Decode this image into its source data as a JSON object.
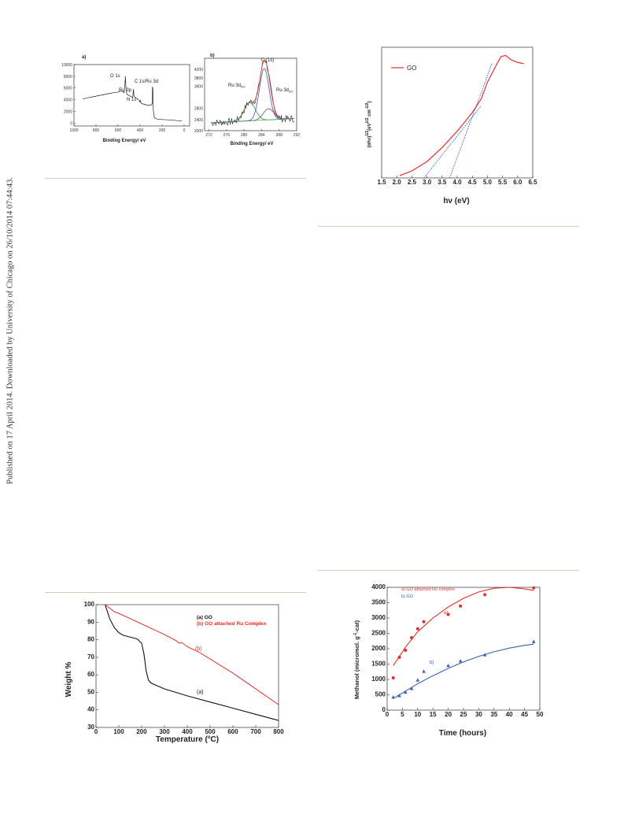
{
  "page": {
    "side_note": "Published on 17 April 2014. Downloaded by University of Chicago on 26/10/2014 07:44:43."
  },
  "chart_data": [
    {
      "id": "xps_survey",
      "type": "line",
      "panel_label": "a)",
      "xlabel": "Binding Energy/ eV",
      "ylabel": "",
      "xlim": [
        1000,
        -50
      ],
      "ylim": [
        -500,
        10000
      ],
      "x_ticks": [
        "1000",
        "800",
        "600",
        "400",
        "200",
        "0"
      ],
      "y_ticks": [
        "10000",
        "8000",
        "6000",
        "4000",
        "2000",
        "0"
      ],
      "series": [
        {
          "x": [
            920,
            880,
            840,
            800,
            760,
            720,
            680,
            640,
            600,
            570,
            545,
            538,
            533,
            528,
            520,
            500,
            480,
            470,
            465,
            460,
            455,
            445,
            430,
            415,
            405,
            400,
            398,
            390,
            380,
            360,
            340,
            320,
            300,
            290,
            287,
            284,
            280,
            270,
            250,
            200,
            150,
            100,
            60,
            20
          ],
          "y": [
            4100,
            4300,
            4450,
            4600,
            4750,
            4900,
            5050,
            5200,
            5300,
            5500,
            5200,
            6500,
            8000,
            6000,
            4900,
            4700,
            4500,
            4400,
            4700,
            5800,
            4600,
            4400,
            4200,
            4000,
            3800,
            3550,
            3900,
            3400,
            3300,
            3200,
            3100,
            3000,
            3100,
            3300,
            6200,
            5900,
            2300,
            900,
            700,
            600,
            550,
            500,
            400,
            350
          ]
        }
      ],
      "annotations": [
        "O 1s",
        "Ru 3p",
        "N 1s",
        "C 1s/Ru 3d"
      ]
    },
    {
      "id": "xps_c1s",
      "type": "line",
      "panel_label": "b)",
      "xlabel": "Binding Energy/ eV",
      "ylabel": "",
      "xlim": [
        292,
        271
      ],
      "ylim": [
        2000,
        4600
      ],
      "x_ticks": [
        "272",
        "276",
        "280",
        "284",
        "288",
        "292"
      ],
      "y_ticks": [
        "4200",
        "3800",
        "3600",
        "2800",
        "2400",
        "2000"
      ],
      "annotations": [
        "C (1s)",
        "Ru 3d5/2",
        "Ru 3d3/2"
      ]
    },
    {
      "id": "tauc",
      "type": "line",
      "xlabel": "hν (eV)",
      "ylabel": "(αhν)1/2(eV1/2 cm-1/2)",
      "xlim": [
        1.5,
        6.5
      ],
      "x_ticks": [
        "1.5",
        "2.0",
        "2.5",
        "3.0",
        "3.5",
        "4.0",
        "4.5",
        "5.0",
        "5.5",
        "6.0",
        "6.5"
      ],
      "series": [
        {
          "name": "GO",
          "x": [
            2.1,
            2.5,
            3.0,
            3.5,
            4.0,
            4.5,
            4.8,
            5.0,
            5.3,
            5.45,
            5.6,
            5.8,
            6.0,
            6.2
          ],
          "y": [
            0.02,
            0.06,
            0.14,
            0.26,
            0.4,
            0.56,
            0.68,
            0.82,
            0.97,
            1.04,
            1.05,
            1.01,
            0.99,
            0.98
          ]
        }
      ],
      "tangents": [
        {
          "from": [
            2.9,
            0.0
          ],
          "to": [
            4.8,
            0.62
          ]
        },
        {
          "from": [
            3.75,
            0.0
          ],
          "to": [
            5.15,
            0.98
          ]
        }
      ]
    },
    {
      "id": "tga",
      "type": "line",
      "xlabel": "Temperature (°C)",
      "ylabel": "Weight %",
      "xlim": [
        0,
        800
      ],
      "ylim": [
        30,
        100
      ],
      "x_ticks": [
        "0",
        "100",
        "200",
        "300",
        "400",
        "500",
        "600",
        "700",
        "800"
      ],
      "y_ticks": [
        "100",
        "90",
        "80",
        "70",
        "60",
        "50",
        "40",
        "30"
      ],
      "legend": [
        "(a) GO",
        "(b) GO attached Ru Complex"
      ],
      "series": [
        {
          "name": "(a)",
          "x": [
            40,
            60,
            80,
            100,
            120,
            150,
            180,
            200,
            210,
            220,
            230,
            240,
            250,
            300,
            400,
            500,
            600,
            700,
            800
          ],
          "y": [
            100,
            92,
            87,
            84,
            82.5,
            81.5,
            80.5,
            78,
            72,
            62,
            57,
            55.5,
            54.8,
            52,
            48,
            44.5,
            41,
            37.5,
            34
          ]
        },
        {
          "name": "(b)",
          "x": [
            40,
            60,
            80,
            100,
            150,
            200,
            250,
            300,
            350,
            365,
            375,
            400,
            450,
            500,
            600,
            700,
            800
          ],
          "y": [
            100,
            98,
            96,
            95,
            92,
            89,
            86,
            83,
            79.5,
            78,
            78.5,
            76,
            73,
            69,
            61,
            52,
            43
          ]
        }
      ],
      "curve_labels": [
        "(a)",
        "(b)"
      ]
    },
    {
      "id": "methanol",
      "type": "scatter",
      "xlabel": "Time (hours)",
      "ylabel": "Methanol (micromol. g-1-cat)",
      "xlim": [
        0,
        50
      ],
      "ylim": [
        0,
        4000
      ],
      "x_ticks": [
        "0",
        "5",
        "10",
        "15",
        "20",
        "25",
        "30",
        "35",
        "40",
        "45",
        "50"
      ],
      "y_ticks": [
        "4000",
        "3500",
        "3000",
        "2500",
        "2000",
        "1500",
        "1000",
        "500",
        "0"
      ],
      "legend": [
        "a) GO attached Ru complex",
        "b) GO"
      ],
      "series": [
        {
          "name": "a)",
          "color": "#e0302c",
          "points_x": [
            2,
            4,
            6,
            8,
            10,
            12,
            20,
            24,
            32,
            48
          ],
          "points_y": [
            1050,
            1720,
            1950,
            2360,
            2650,
            2880,
            3120,
            3390,
            3760,
            3980
          ],
          "fit_x": [
            2,
            6,
            10,
            15,
            20,
            25,
            30,
            35,
            40,
            45,
            48
          ],
          "fit_y": [
            1450,
            2050,
            2550,
            3000,
            3360,
            3640,
            3850,
            3970,
            4000,
            3950,
            3900
          ]
        },
        {
          "name": "b)",
          "color": "#3a5fb0",
          "points_x": [
            2,
            4,
            6,
            8,
            10,
            12,
            20,
            24,
            32,
            48
          ],
          "points_y": [
            420,
            470,
            580,
            700,
            980,
            1260,
            1450,
            1600,
            1800,
            2230
          ],
          "fit_x": [
            2,
            6,
            10,
            15,
            20,
            25,
            30,
            35,
            40,
            45,
            48
          ],
          "fit_y": [
            380,
            620,
            860,
            1120,
            1360,
            1570,
            1750,
            1900,
            2020,
            2110,
            2150
          ]
        }
      ]
    }
  ],
  "colors": {
    "red": "#e0302c",
    "blue": "#3a5fb0",
    "green": "#2aa23a",
    "violet": "#7a3c9e",
    "rule": "#cfcfbf"
  }
}
